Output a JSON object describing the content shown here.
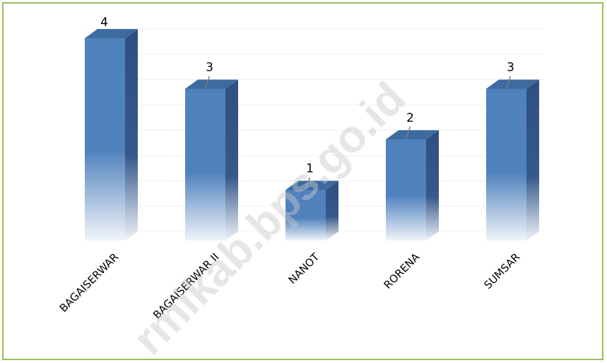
{
  "chart_data": {
    "type": "bar",
    "style": "3d-column",
    "categories": [
      "BAGAISERWAR",
      "BAGAISERWAR II",
      "NANOT",
      "RORENA",
      "SUMSAR"
    ],
    "values": [
      4,
      3,
      1,
      2,
      3
    ],
    "data_labels": [
      "4",
      "3",
      "1",
      "2",
      "3"
    ],
    "ylim": [
      0,
      4
    ],
    "grid": true,
    "legend": "none",
    "colors": {
      "bar": "#4f81bd",
      "bar_side": "#2f5080",
      "bar_top": "#3d6a9f",
      "border": "#9bbb59",
      "grid": "#f0f0f0"
    }
  },
  "watermark": "rmikab.bps.go.id"
}
